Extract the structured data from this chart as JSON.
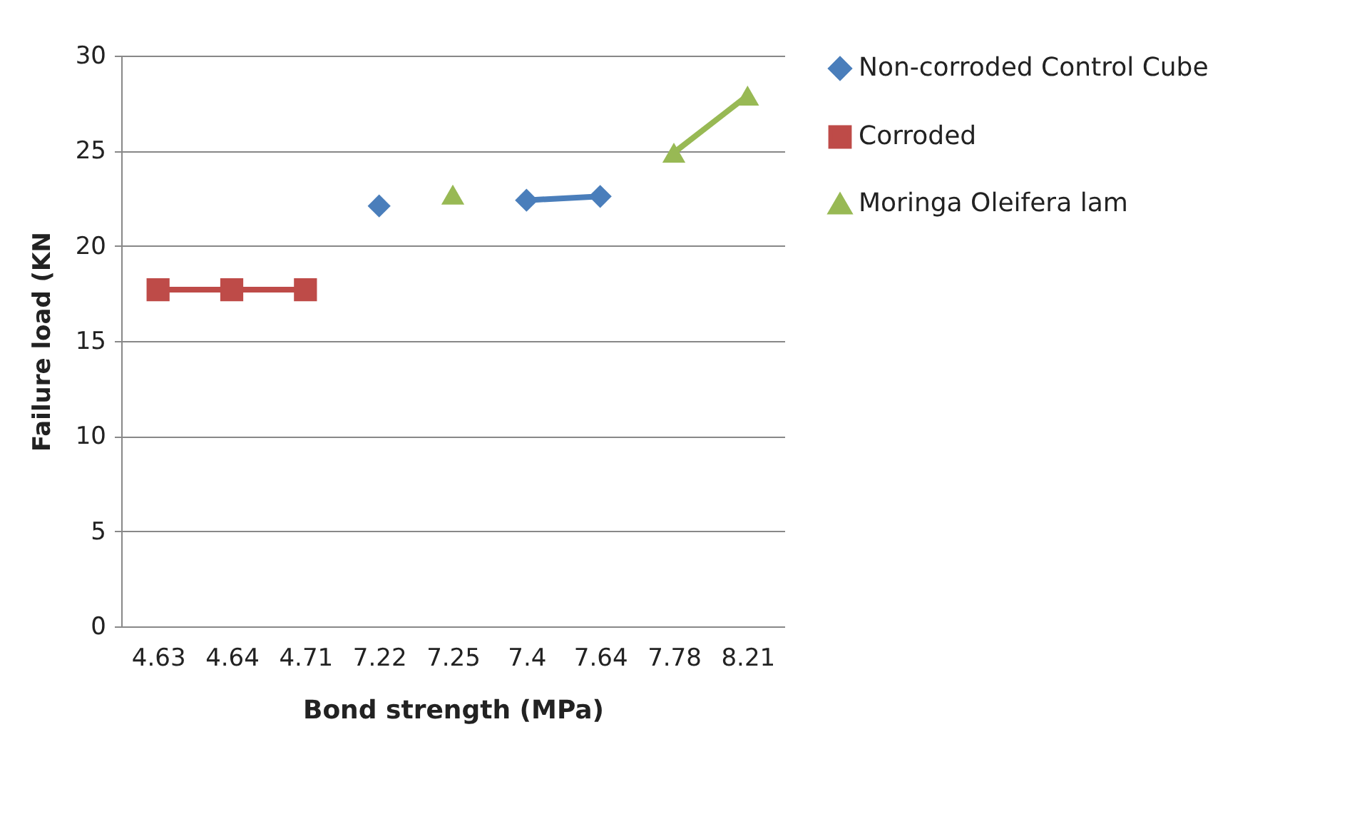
{
  "chart_data": {
    "type": "line",
    "xlabel": "Bond strength (MPa)",
    "ylabel": "Failure load (KN",
    "categories": [
      "4.63",
      "4.64",
      "4.71",
      "7.22",
      "7.25",
      "7.4",
      "7.64",
      "7.78",
      "8.21"
    ],
    "series": [
      {
        "name": "Non-corroded Control Cube",
        "color": "#4a7ebb",
        "marker": "diamond",
        "values": [
          null,
          null,
          null,
          22.1,
          null,
          22.4,
          22.6,
          null,
          null
        ]
      },
      {
        "name": "Corroded",
        "color": "#be4b48",
        "marker": "square",
        "values": [
          17.7,
          17.7,
          17.7,
          null,
          null,
          null,
          null,
          null,
          null
        ]
      },
      {
        "name": "Moringa Oleifera lam",
        "color": "#98b954",
        "marker": "triangle",
        "values": [
          null,
          null,
          null,
          null,
          22.7,
          null,
          null,
          24.9,
          27.9
        ]
      }
    ],
    "ylim": [
      0,
      30
    ],
    "yticks": [
      0,
      5,
      10,
      15,
      20,
      25,
      30
    ],
    "grid": "y",
    "legend": "right",
    "line_style": "solid"
  }
}
